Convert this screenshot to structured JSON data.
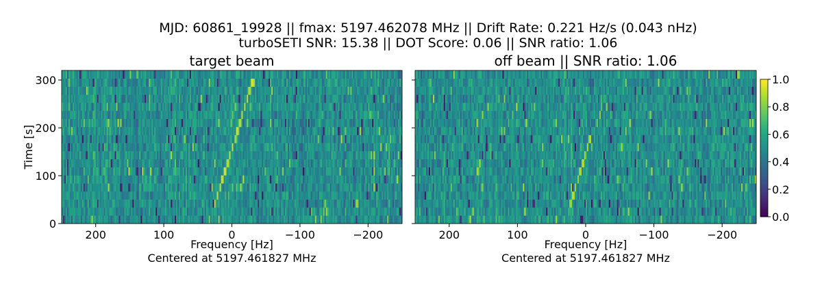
{
  "chart_data": {
    "type": "heatmap",
    "title_line1": "MJD: 60861_19928 || fmax: 5197.462078 MHz || Drift Rate: 0.221 Hz/s (0.043 nHz)",
    "title_line2": "turboSETI SNR: 15.38 || DOT Score: 0.06 || SNR ratio: 1.06",
    "colormap": "viridis",
    "colorbar": {
      "range": [
        0.0,
        1.0
      ],
      "ticks": [
        "0.0",
        "0.2",
        "0.4",
        "0.6",
        "0.8",
        "1.0"
      ]
    },
    "panels": [
      {
        "title": "target beam",
        "xlabel": "Frequency [Hz]",
        "xlabel2": "Centered at 5197.461827 MHz",
        "ylabel": "Time [s]",
        "xlim": [
          250,
          -250
        ],
        "ylim": [
          0,
          320
        ],
        "xticks": [
          {
            "v": 200,
            "label": "200"
          },
          {
            "v": 100,
            "label": "100"
          },
          {
            "v": 0,
            "label": "0"
          },
          {
            "v": -100,
            "label": "−100"
          },
          {
            "v": -200,
            "label": "−200"
          }
        ],
        "yticks": [
          {
            "v": 0,
            "label": "0"
          },
          {
            "v": 100,
            "label": "100"
          },
          {
            "v": 200,
            "label": "200"
          },
          {
            "v": 300,
            "label": "300"
          }
        ],
        "rows": 19,
        "channels": 250,
        "noise_mean": 0.5,
        "noise_spread": 0.14,
        "signal": {
          "t_start": 40,
          "f_start": 25,
          "t_end": 290,
          "f_end": -29,
          "intensity": 0.95
        },
        "seed": 7
      },
      {
        "title": "off beam  || SNR ratio: 1.06",
        "xlabel": "Frequency [Hz]",
        "xlabel2": "Centered at 5197.461827 MHz",
        "ylabel": "",
        "xlim": [
          250,
          -250
        ],
        "ylim": [
          0,
          320
        ],
        "xticks": [
          {
            "v": 200,
            "label": "200"
          },
          {
            "v": 100,
            "label": "100"
          },
          {
            "v": 0,
            "label": "0"
          },
          {
            "v": -100,
            "label": "−100"
          },
          {
            "v": -200,
            "label": "−200"
          }
        ],
        "yticks": [
          {
            "v": 0,
            "label": ""
          },
          {
            "v": 100,
            "label": ""
          },
          {
            "v": 200,
            "label": ""
          },
          {
            "v": 300,
            "label": ""
          }
        ],
        "rows": 19,
        "channels": 250,
        "noise_mean": 0.5,
        "noise_spread": 0.14,
        "signal": {
          "t_start": 40,
          "f_start": 22,
          "t_end": 180,
          "f_end": -7,
          "intensity": 0.9
        },
        "seed": 21
      }
    ]
  }
}
